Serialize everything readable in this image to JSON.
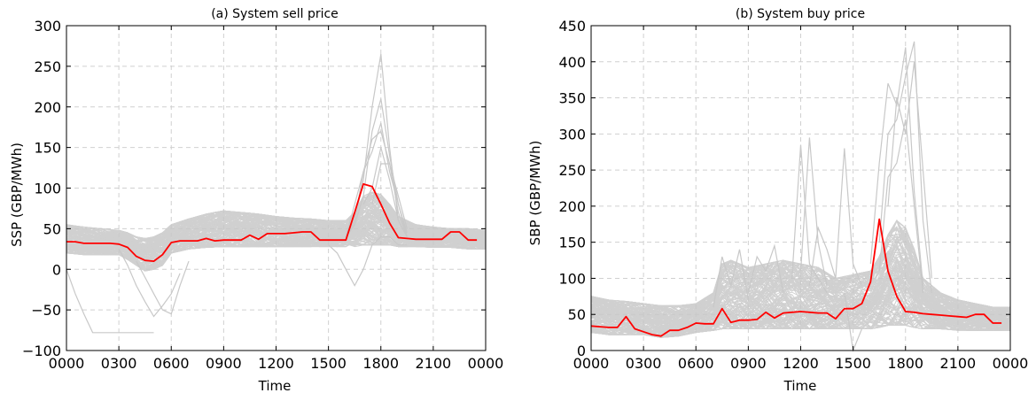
{
  "charts": [
    {
      "id": "ssp",
      "title": "(a) System sell price",
      "xlabel": "Time",
      "ylabel": "SSP (GBP/MWh)",
      "ylim": [
        -100,
        300
      ],
      "yticks": [
        -100,
        -50,
        0,
        50,
        100,
        150,
        200,
        250,
        300
      ],
      "xticks": [
        "0000",
        "0300",
        "0600",
        "0900",
        "1200",
        "1500",
        "1800",
        "2100",
        "0000"
      ],
      "grid": true
    },
    {
      "id": "sbp",
      "title": "(b) System buy price",
      "xlabel": "Time",
      "ylabel": "SBP (GBP/MWh)",
      "ylim": [
        0,
        450
      ],
      "yticks": [
        0,
        50,
        100,
        150,
        200,
        250,
        300,
        350,
        400,
        450
      ],
      "xticks": [
        "0000",
        "0300",
        "0600",
        "0900",
        "1200",
        "1500",
        "1800",
        "2100",
        "0000"
      ],
      "grid": true
    }
  ],
  "colors": {
    "highlight": "#ff0000",
    "scenarios": "#c8c8c8",
    "grid": "#d0d0d0"
  },
  "chart_data": [
    {
      "type": "line",
      "title": "(a) System sell price",
      "xlabel": "Time",
      "ylabel": "SSP (GBP/MWh)",
      "x_unit": "hours from 0000 (half-hourly settlement periods)",
      "xlim": [
        0,
        24
      ],
      "ylim": [
        -100,
        300
      ],
      "grid": true,
      "series": [
        {
          "role": "highlight",
          "color": "#ff0000",
          "x": [
            0,
            0.5,
            1,
            1.5,
            2,
            2.5,
            3,
            3.5,
            4,
            4.5,
            5,
            5.5,
            6,
            6.5,
            7,
            7.5,
            8,
            8.5,
            9,
            9.5,
            10,
            10.5,
            11,
            11.5,
            12,
            12.5,
            13,
            13.5,
            14,
            14.5,
            15,
            15.5,
            16,
            16.5,
            17,
            17.5,
            18,
            18.5,
            19,
            19.5,
            20,
            20.5,
            21,
            21.5,
            22,
            22.5,
            23,
            23.5
          ],
          "values": [
            34,
            34,
            32,
            32,
            32,
            32,
            31,
            27,
            16,
            11,
            10,
            18,
            33,
            35,
            35,
            35,
            38,
            35,
            36,
            36,
            36,
            42,
            37,
            44,
            44,
            44,
            45,
            46,
            46,
            36,
            36,
            36,
            36,
            70,
            105,
            102,
            80,
            57,
            39,
            38,
            37,
            37,
            37,
            37,
            46,
            46,
            36,
            36
          ]
        }
      ],
      "envelope": {
        "role": "scenarios",
        "color": "#c8c8c8",
        "x": [
          0,
          1,
          2,
          3,
          3.5,
          4,
          4.5,
          5,
          5.5,
          6,
          7,
          8,
          9,
          10,
          11,
          12,
          13,
          14,
          15,
          16,
          16.5,
          17,
          17.5,
          18,
          18.5,
          19,
          20,
          21,
          22,
          23,
          24
        ],
        "upper": [
          55,
          52,
          50,
          48,
          45,
          40,
          38,
          40,
          45,
          55,
          62,
          68,
          72,
          70,
          68,
          65,
          63,
          62,
          60,
          60,
          70,
          90,
          95,
          92,
          80,
          65,
          55,
          52,
          50,
          50,
          48
        ],
        "lower": [
          20,
          18,
          18,
          18,
          12,
          5,
          -2,
          0,
          5,
          20,
          25,
          27,
          28,
          28,
          28,
          28,
          28,
          28,
          28,
          28,
          28,
          30,
          30,
          30,
          30,
          28,
          28,
          27,
          27,
          25,
          25
        ]
      },
      "outliers": [
        {
          "x": [
            0,
            0.5,
            1,
            1.5,
            2,
            2.5,
            3,
            3.5,
            4,
            4.5,
            5
          ],
          "values": [
            0,
            -30,
            -55,
            -78,
            -78,
            -78,
            -78,
            -78,
            -78,
            -78,
            -78
          ]
        },
        {
          "x": [
            3,
            3.5,
            4,
            4.5,
            5,
            5.5,
            6,
            6.5
          ],
          "values": [
            25,
            5,
            -20,
            -40,
            -58,
            -45,
            -30,
            -5
          ]
        },
        {
          "x": [
            4,
            4.5,
            5,
            5.5,
            6,
            6.5,
            7
          ],
          "values": [
            10,
            -10,
            -30,
            -50,
            -55,
            -20,
            10
          ]
        },
        {
          "x": [
            15,
            15.5,
            16,
            16.5,
            17,
            17.5,
            18,
            18.5,
            19,
            19.5
          ],
          "values": [
            30,
            20,
            0,
            -20,
            0,
            30,
            40,
            40,
            30,
            30
          ]
        },
        {
          "x": [
            16,
            16.5,
            17,
            17.5,
            18,
            18.5,
            19,
            19.5
          ],
          "values": [
            40,
            60,
            110,
            200,
            265,
            150,
            60,
            40
          ]
        },
        {
          "x": [
            16,
            16.5,
            17,
            17.5,
            18,
            18.5,
            19,
            19.5
          ],
          "values": [
            40,
            55,
            90,
            170,
            210,
            140,
            80,
            40
          ]
        },
        {
          "x": [
            16,
            16.5,
            17,
            17.5,
            18,
            18.5,
            19,
            19.5
          ],
          "values": [
            40,
            80,
            120,
            160,
            170,
            130,
            70,
            40
          ]
        },
        {
          "x": [
            16.5,
            17,
            17.5,
            18,
            18.5,
            19,
            19.5
          ],
          "values": [
            60,
            120,
            145,
            180,
            120,
            80,
            45
          ]
        },
        {
          "x": [
            17,
            17.5,
            18,
            18.5,
            19
          ],
          "values": [
            80,
            100,
            150,
            110,
            60
          ]
        },
        {
          "x": [
            17.5,
            18,
            18.5,
            19,
            19.5
          ],
          "values": [
            80,
            130,
            130,
            90,
            50
          ]
        }
      ]
    },
    {
      "type": "line",
      "title": "(b) System buy price",
      "xlabel": "Time",
      "ylabel": "SBP (GBP/MWh)",
      "x_unit": "hours from 0000 (half-hourly settlement periods)",
      "xlim": [
        0,
        24
      ],
      "ylim": [
        0,
        450
      ],
      "grid": true,
      "series": [
        {
          "role": "highlight",
          "color": "#ff0000",
          "x": [
            0,
            0.5,
            1,
            1.5,
            2,
            2.5,
            3,
            3.5,
            4,
            4.5,
            5,
            5.5,
            6,
            6.5,
            7,
            7.5,
            8,
            8.5,
            9,
            9.5,
            10,
            10.5,
            11,
            11.5,
            12,
            12.5,
            13,
            13.5,
            14,
            14.5,
            15,
            15.5,
            16,
            16.5,
            17,
            17.5,
            18,
            18.5,
            19,
            19.5,
            20,
            20.5,
            21,
            21.5,
            22,
            22.5,
            23,
            23.5
          ],
          "values": [
            34,
            33,
            32,
            32,
            47,
            30,
            26,
            22,
            20,
            28,
            28,
            32,
            38,
            37,
            37,
            58,
            39,
            42,
            42,
            43,
            53,
            45,
            52,
            53,
            54,
            53,
            52,
            52,
            44,
            58,
            58,
            65,
            95,
            182,
            110,
            75,
            54,
            53,
            51,
            50,
            49,
            48,
            47,
            46,
            50,
            50,
            38,
            38
          ]
        }
      ],
      "envelope": {
        "role": "scenarios",
        "color": "#c8c8c8",
        "x": [
          0,
          1,
          2,
          3,
          4,
          5,
          6,
          7,
          7.5,
          8,
          9,
          10,
          11,
          12,
          13,
          14,
          15,
          16,
          16.5,
          17,
          17.5,
          18,
          18.5,
          19,
          20,
          21,
          22,
          23,
          24
        ],
        "upper": [
          75,
          70,
          68,
          65,
          62,
          62,
          65,
          80,
          120,
          125,
          115,
          120,
          125,
          120,
          115,
          100,
          105,
          110,
          130,
          160,
          180,
          170,
          140,
          100,
          80,
          70,
          65,
          60,
          60
        ],
        "lower": [
          25,
          22,
          22,
          22,
          18,
          20,
          25,
          28,
          30,
          30,
          30,
          30,
          30,
          30,
          30,
          30,
          30,
          30,
          32,
          35,
          35,
          35,
          32,
          30,
          30,
          28,
          28,
          28,
          28
        ]
      },
      "outliers": [
        {
          "x": [
            11.5,
            12,
            12.5,
            13,
            13.5
          ],
          "values": [
            100,
            285,
            120,
            100,
            80
          ]
        },
        {
          "x": [
            12,
            12.5,
            13,
            13.5
          ],
          "values": [
            110,
            295,
            150,
            90
          ]
        },
        {
          "x": [
            14,
            14.5,
            15,
            15.5
          ],
          "values": [
            100,
            280,
            120,
            90
          ]
        },
        {
          "x": [
            16,
            16.5,
            17,
            17.5,
            18,
            18.5,
            19
          ],
          "values": [
            120,
            260,
            370,
            340,
            420,
            220,
            90
          ]
        },
        {
          "x": [
            16.5,
            17,
            17.5,
            18,
            18.5,
            19,
            19.5
          ],
          "values": [
            150,
            300,
            320,
            380,
            428,
            180,
            80
          ]
        },
        {
          "x": [
            17,
            17.5,
            18,
            18.5,
            19,
            19.5
          ],
          "values": [
            200,
            350,
            300,
            400,
            250,
            100
          ]
        },
        {
          "x": [
            16.5,
            17,
            17.5,
            18,
            18.5,
            19
          ],
          "values": [
            110,
            240,
            260,
            320,
            200,
            80
          ]
        },
        {
          "x": [
            7,
            7.5,
            8,
            8.5,
            9
          ],
          "values": [
            60,
            130,
            90,
            140,
            70
          ]
        },
        {
          "x": [
            9,
            9.5,
            10,
            10.5,
            11
          ],
          "values": [
            80,
            130,
            110,
            145,
            80
          ]
        },
        {
          "x": [
            12.5,
            13,
            13.5,
            14
          ],
          "values": [
            90,
            170,
            140,
            100
          ]
        },
        {
          "x": [
            14.5,
            15,
            15.5
          ],
          "values": [
            80,
            0,
            30
          ]
        }
      ]
    }
  ]
}
